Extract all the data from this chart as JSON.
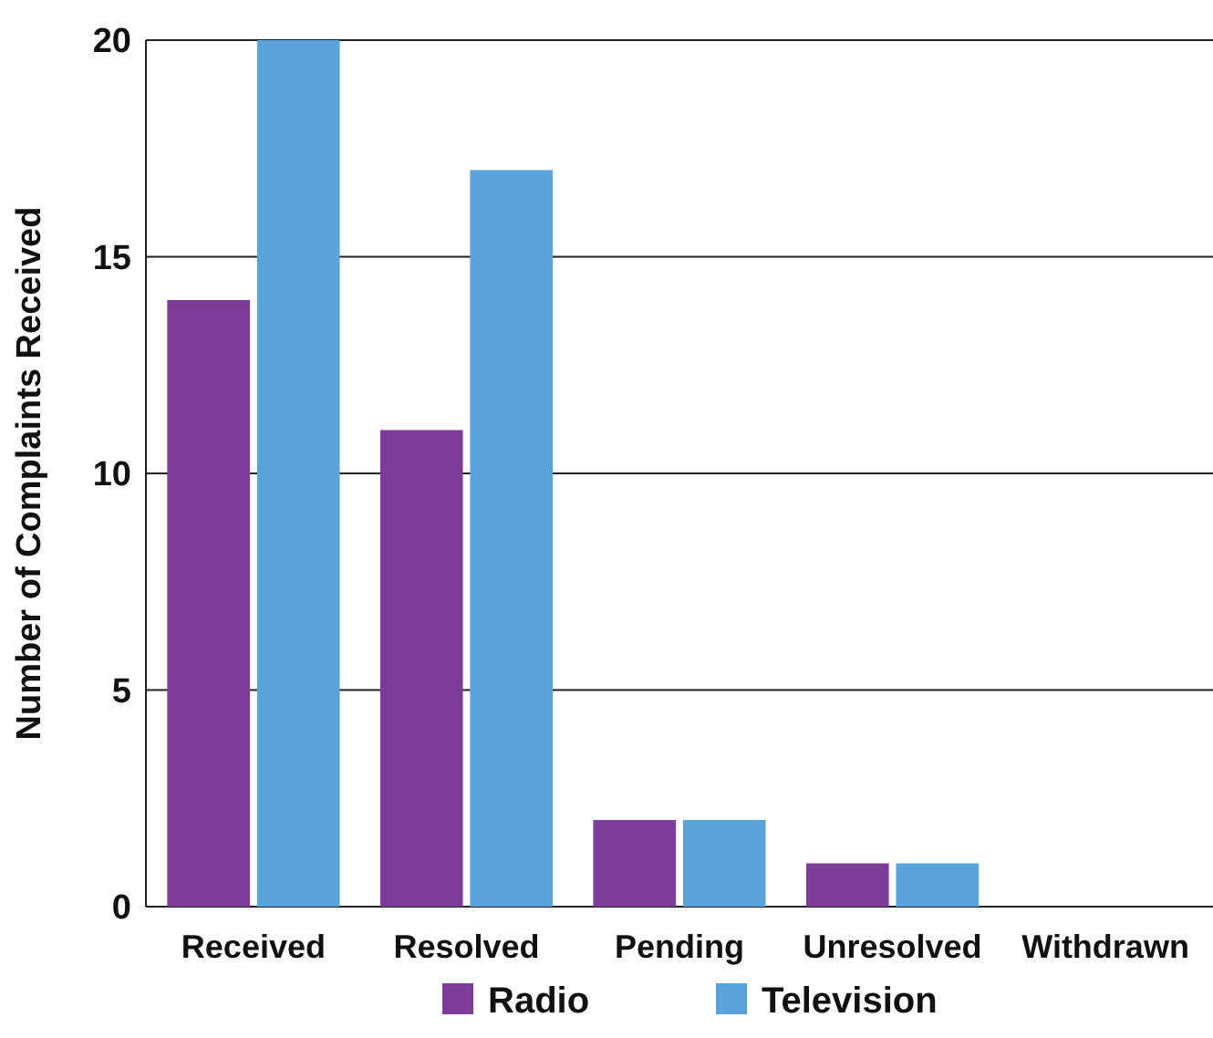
{
  "chart_data": {
    "type": "bar",
    "ylabel": "Number of Complaints Received",
    "categories": [
      "Received",
      "Resolved",
      "Pending",
      "Unresolved",
      "Withdrawn"
    ],
    "series": [
      {
        "name": "Radio",
        "color": "#7d3c98",
        "values": [
          14,
          11,
          2,
          1,
          0
        ]
      },
      {
        "name": "Television",
        "color": "#5ba3db",
        "values": [
          20,
          17,
          2,
          1,
          0
        ]
      }
    ],
    "ylim": [
      0,
      20
    ],
    "yticks": [
      0,
      5,
      10,
      15,
      20
    ],
    "grid": "y",
    "legend": "bottom"
  }
}
